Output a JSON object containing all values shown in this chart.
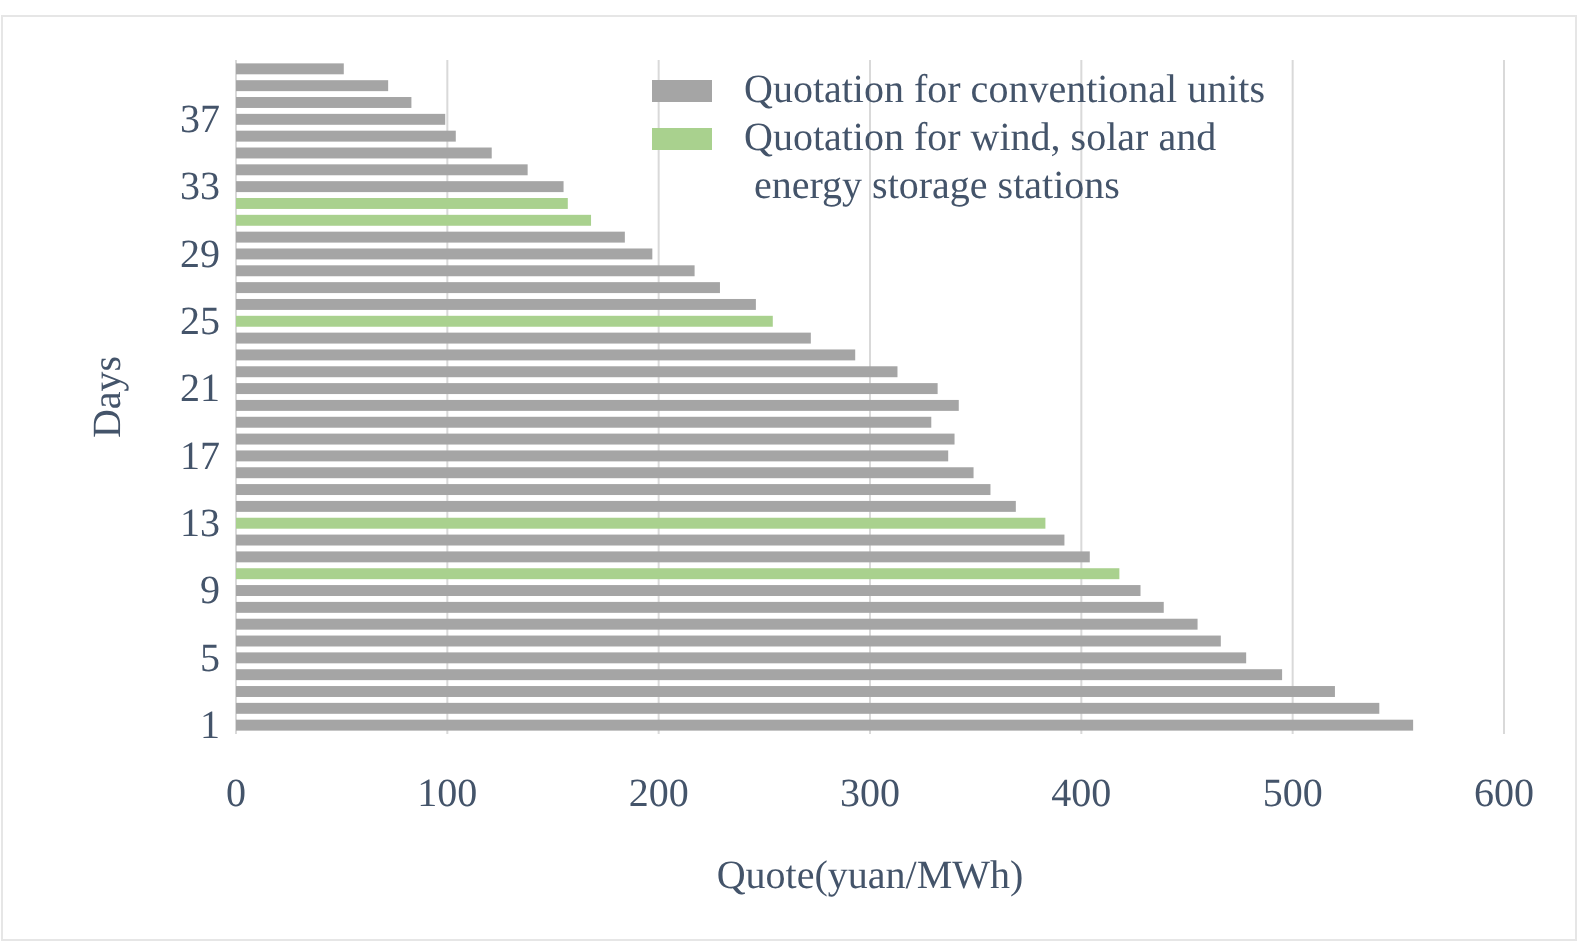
{
  "chart_data": {
    "type": "bar",
    "orientation": "horizontal",
    "xlabel": "Quote(yuan/MWh)",
    "ylabel": "Days",
    "categories": [
      null,
      null,
      null,
      "37",
      null,
      null,
      null,
      "33",
      null,
      null,
      null,
      "29",
      null,
      null,
      null,
      "25",
      null,
      null,
      null,
      "21",
      null,
      null,
      null,
      "17",
      null,
      null,
      null,
      "13",
      null,
      null,
      null,
      "9",
      null,
      null,
      null,
      "5",
      null,
      null,
      null,
      "1"
    ],
    "series": [
      {
        "name": "Quotation for conventional units",
        "color": "#a5a5a5",
        "values": [
          51,
          72,
          83,
          99,
          104,
          121,
          138,
          155,
          null,
          null,
          184,
          197,
          217,
          229,
          246,
          null,
          272,
          293,
          313,
          332,
          342,
          329,
          340,
          337,
          349,
          357,
          369,
          null,
          392,
          404,
          null,
          428,
          439,
          455,
          466,
          478,
          495,
          520,
          541,
          557
        ]
      },
      {
        "name": "Quotation for wind, solar and\n energy storage stations",
        "color": "#a9d18e",
        "values": [
          null,
          null,
          null,
          null,
          null,
          null,
          null,
          null,
          157,
          168,
          null,
          null,
          null,
          null,
          null,
          254,
          null,
          null,
          null,
          null,
          null,
          null,
          null,
          null,
          null,
          null,
          null,
          383,
          null,
          null,
          418,
          null,
          null,
          null,
          null,
          null,
          null,
          null,
          null,
          null
        ]
      }
    ],
    "xlim": [
      0,
      600
    ],
    "xticks": [
      0,
      100,
      200,
      300,
      400,
      500,
      600
    ],
    "grid": "x",
    "legend": "top right"
  }
}
